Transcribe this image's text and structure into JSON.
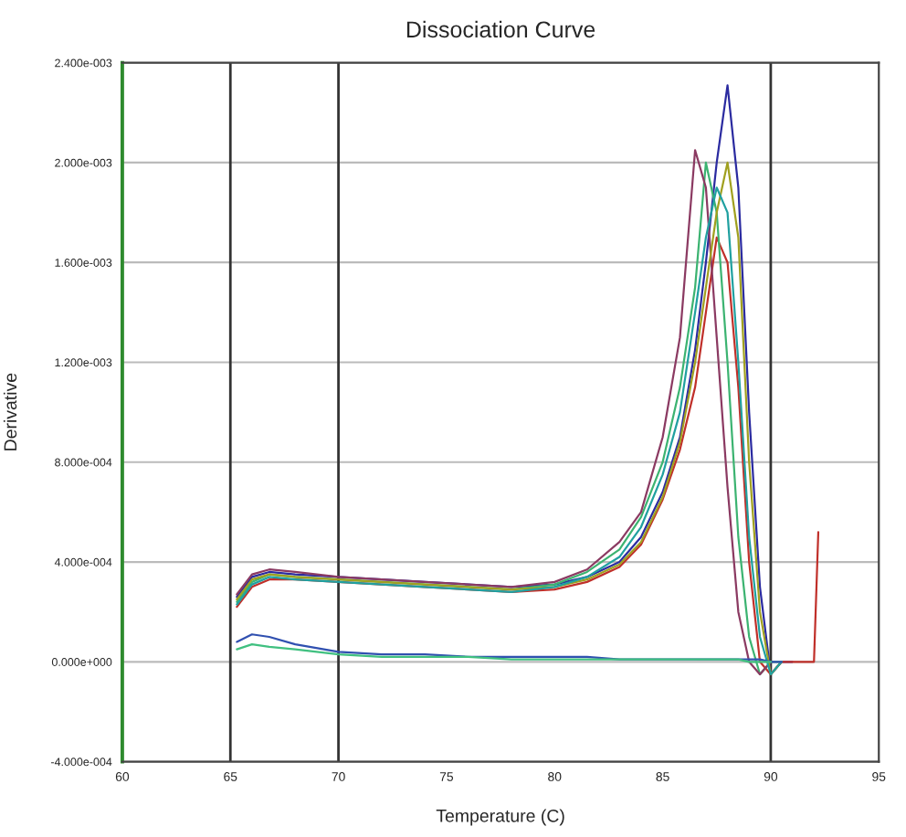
{
  "chart_data": {
    "type": "line",
    "title": "Dissociation Curve",
    "xlabel": "Temperature (C)",
    "ylabel": "Derivative",
    "x": [
      65.3,
      66,
      66.8,
      68,
      70,
      72,
      74,
      76,
      78,
      80,
      81.5,
      83,
      84,
      85,
      85.8,
      86.5,
      87,
      87.5,
      88,
      88.5,
      89,
      89.5,
      90,
      90.5,
      91,
      91.5,
      92,
      92.2
    ],
    "series": [
      {
        "color": "#2b2ba0",
        "values": [
          0.00026,
          0.00034,
          0.00036,
          0.00035,
          0.00034,
          0.00033,
          0.00032,
          0.00031,
          0.0003,
          0.00031,
          0.00034,
          0.0004,
          0.0005,
          0.00068,
          0.0009,
          0.00125,
          0.0016,
          0.002,
          0.00231,
          0.0019,
          0.001,
          0.0003,
          -5e-05,
          0,
          0,
          null,
          null,
          null
        ]
      },
      {
        "color": "#c0302a",
        "values": [
          0.00022,
          0.0003,
          0.00033,
          0.00033,
          0.00032,
          0.00031,
          0.0003,
          0.00029,
          0.00028,
          0.00029,
          0.00032,
          0.00038,
          0.00047,
          0.00065,
          0.00085,
          0.0011,
          0.0014,
          0.0017,
          0.0016,
          0.0011,
          0.0004,
          0,
          -5e-05,
          0,
          0,
          0,
          0,
          0.00052
        ]
      },
      {
        "color": "#3cb371",
        "values": [
          0.00024,
          0.00032,
          0.00035,
          0.00034,
          0.00033,
          0.00032,
          0.00031,
          0.0003,
          0.00029,
          0.00031,
          0.00036,
          0.00045,
          0.00058,
          0.0008,
          0.0011,
          0.0015,
          0.002,
          0.0018,
          0.0012,
          0.0005,
          0.0001,
          -5e-05,
          0,
          0,
          null,
          null,
          null,
          null
        ]
      },
      {
        "color": "#8b3a62",
        "values": [
          0.00027,
          0.00035,
          0.00037,
          0.00036,
          0.00034,
          0.00033,
          0.00032,
          0.00031,
          0.0003,
          0.00032,
          0.00037,
          0.00048,
          0.0006,
          0.0009,
          0.0013,
          0.00205,
          0.0019,
          0.0013,
          0.0007,
          0.0002,
          0,
          -5e-05,
          0,
          null,
          null,
          null,
          null,
          null
        ]
      },
      {
        "color": "#a0a020",
        "values": [
          0.00025,
          0.00033,
          0.00035,
          0.00034,
          0.00033,
          0.00032,
          0.00031,
          0.0003,
          0.00029,
          0.0003,
          0.00033,
          0.00039,
          0.00048,
          0.00066,
          0.00088,
          0.0012,
          0.0015,
          0.0018,
          0.002,
          0.0017,
          0.0008,
          0.0002,
          -5e-05,
          0,
          null,
          null,
          null,
          null
        ]
      },
      {
        "color": "#20a0a0",
        "values": [
          0.00023,
          0.00031,
          0.00034,
          0.00033,
          0.00032,
          0.00031,
          0.0003,
          0.00029,
          0.00028,
          0.0003,
          0.00034,
          0.00042,
          0.00054,
          0.00075,
          0.001,
          0.0014,
          0.0017,
          0.0019,
          0.0018,
          0.0012,
          0.0005,
          0.0001,
          -5e-05,
          0,
          null,
          null,
          null,
          null
        ]
      },
      {
        "color": "#3050b0",
        "values": [
          8e-05,
          0.00011,
          0.0001,
          7e-05,
          4e-05,
          3e-05,
          3e-05,
          2e-05,
          2e-05,
          2e-05,
          2e-05,
          1e-05,
          1e-05,
          1e-05,
          1e-05,
          1e-05,
          1e-05,
          1e-05,
          1e-05,
          1e-05,
          1e-05,
          1e-05,
          0,
          0,
          null,
          null,
          null,
          null
        ]
      },
      {
        "color": "#40c080",
        "values": [
          5e-05,
          7e-05,
          6e-05,
          5e-05,
          3e-05,
          2e-05,
          2e-05,
          2e-05,
          1e-05,
          1e-05,
          1e-05,
          1e-05,
          1e-05,
          1e-05,
          1e-05,
          1e-05,
          1e-05,
          1e-05,
          1e-05,
          1e-05,
          0,
          0,
          0,
          null,
          null,
          null,
          null,
          null
        ]
      }
    ],
    "xlim": [
      60,
      95
    ],
    "xticks": [
      60,
      65,
      70,
      75,
      80,
      85,
      90,
      95
    ],
    "ylim": [
      -0.0004,
      0.0024
    ],
    "yticks": [
      {
        "value": -0.0004,
        "label": "-4.000e-004"
      },
      {
        "value": 0,
        "label": "0.000e+000"
      },
      {
        "value": 0.0004,
        "label": "4.000e-004"
      },
      {
        "value": 0.0008,
        "label": "8.000e-004"
      },
      {
        "value": 0.0012,
        "label": "1.200e-003"
      },
      {
        "value": 0.0016,
        "label": "1.600e-003"
      },
      {
        "value": 0.002,
        "label": "2.000e-003"
      },
      {
        "value": 0.0024,
        "label": "2.400e-003"
      }
    ],
    "ref_lines": [
      {
        "axis": "x",
        "value": 65,
        "color": "#333333"
      },
      {
        "axis": "x",
        "value": 70,
        "color": "#333333"
      },
      {
        "axis": "x",
        "value": 90,
        "color": "#333333"
      }
    ],
    "grid": "y"
  }
}
